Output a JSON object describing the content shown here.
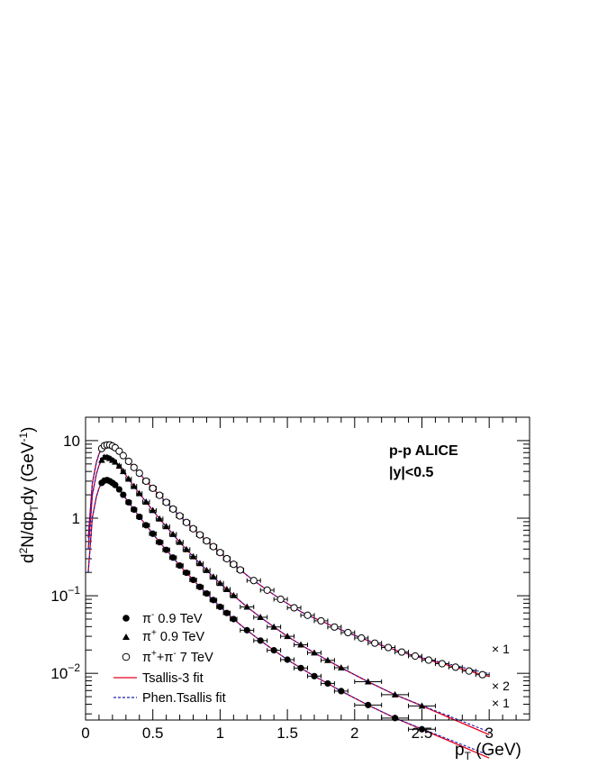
{
  "chart_data": {
    "type": "scatter",
    "xlabel": "p_T (GeV)",
    "ylabel": "d²N/dp_Tdy (GeV⁻¹)",
    "xlim": [
      0,
      3.3
    ],
    "ylim": [
      0.0025,
      20
    ],
    "yscale": "log",
    "x_ticks": [
      "0",
      "0.5",
      "1",
      "1.5",
      "2",
      "2.5",
      "3"
    ],
    "y_ticks": [
      "10^{-2}",
      "10^{-1}",
      "1",
      "10"
    ],
    "annotations": [
      "p-p  ALICE",
      "|y|<0.5"
    ],
    "multipliers": [
      "× 1",
      "× 2",
      "× 1"
    ],
    "legend": [
      {
        "label": "π⁻  0.9 TeV",
        "marker": "filled-circle"
      },
      {
        "label": "π⁺  0.9 TeV",
        "marker": "filled-triangle"
      },
      {
        "label": "π⁺+π⁻  7 TeV",
        "marker": "open-circle"
      },
      {
        "label": "Tsallis-3 fit",
        "line": "solid",
        "color": "#e8001c"
      },
      {
        "label": "Phen.Tsallis fit",
        "line": "dashed",
        "color": "#1c1cb4"
      }
    ],
    "colors": {
      "tsallis": "#e8001c",
      "phen": "#1c1cb4",
      "marker": "#000000"
    },
    "series": [
      {
        "marker": "open-circle",
        "x": [
          0.12,
          0.14,
          0.16,
          0.18,
          0.2,
          0.22,
          0.25,
          0.28,
          0.32,
          0.36,
          0.4,
          0.45,
          0.5,
          0.55,
          0.6,
          0.65,
          0.7,
          0.75,
          0.8,
          0.85,
          0.9,
          0.95,
          1.0,
          1.05,
          1.1,
          1.15,
          1.25,
          1.35,
          1.45,
          1.55,
          1.65,
          1.75,
          1.85,
          1.95,
          2.05,
          2.15,
          2.25,
          2.35,
          2.45,
          2.55,
          2.65,
          2.75,
          2.85,
          2.95
        ],
        "y": [
          7.9,
          8.6,
          8.8,
          8.8,
          8.5,
          8.1,
          7.3,
          6.4,
          5.4,
          4.5,
          3.8,
          3.0,
          2.43,
          1.97,
          1.6,
          1.31,
          1.07,
          0.88,
          0.73,
          0.61,
          0.51,
          0.43,
          0.36,
          0.3,
          0.254,
          0.215,
          0.157,
          0.118,
          0.09,
          0.07,
          0.056,
          0.0475,
          0.0395,
          0.0335,
          0.0285,
          0.0245,
          0.0215,
          0.0188,
          0.0167,
          0.0148,
          0.0133,
          0.012,
          0.0107,
          0.0096
        ],
        "xerr": [
          0.01,
          0.01,
          0.01,
          0.01,
          0.01,
          0.01,
          0.015,
          0.015,
          0.02,
          0.02,
          0.02,
          0.025,
          0.025,
          0.025,
          0.025,
          0.025,
          0.025,
          0.025,
          0.025,
          0.025,
          0.025,
          0.025,
          0.025,
          0.025,
          0.025,
          0.025,
          0.05,
          0.05,
          0.05,
          0.05,
          0.05,
          0.05,
          0.05,
          0.05,
          0.05,
          0.05,
          0.05,
          0.05,
          0.05,
          0.05,
          0.05,
          0.05,
          0.05,
          0.05
        ]
      },
      {
        "marker": "filled-triangle",
        "x": [
          0.12,
          0.14,
          0.16,
          0.18,
          0.2,
          0.22,
          0.25,
          0.28,
          0.32,
          0.36,
          0.4,
          0.45,
          0.5,
          0.55,
          0.6,
          0.65,
          0.7,
          0.75,
          0.8,
          0.85,
          0.9,
          0.95,
          1.0,
          1.05,
          1.1,
          1.2,
          1.3,
          1.4,
          1.5,
          1.6,
          1.7,
          1.8,
          1.9,
          2.1,
          2.3,
          2.5
        ],
        "y": [
          5.6,
          6.1,
          6.1,
          5.9,
          5.6,
          5.3,
          4.7,
          4.0,
          3.2,
          2.58,
          2.08,
          1.62,
          1.26,
          0.98,
          0.78,
          0.62,
          0.49,
          0.395,
          0.32,
          0.261,
          0.213,
          0.175,
          0.145,
          0.121,
          0.101,
          0.0718,
          0.0528,
          0.0396,
          0.03,
          0.0233,
          0.0184,
          0.0147,
          0.0118,
          0.0078,
          0.0053,
          0.0038
        ],
        "xerr": [
          0.01,
          0.01,
          0.01,
          0.01,
          0.01,
          0.01,
          0.015,
          0.015,
          0.02,
          0.02,
          0.02,
          0.025,
          0.025,
          0.025,
          0.025,
          0.025,
          0.025,
          0.025,
          0.025,
          0.025,
          0.025,
          0.025,
          0.025,
          0.025,
          0.025,
          0.05,
          0.05,
          0.05,
          0.05,
          0.05,
          0.05,
          0.05,
          0.05,
          0.1,
          0.1,
          0.1
        ]
      },
      {
        "marker": "filled-circle",
        "x": [
          0.12,
          0.14,
          0.16,
          0.18,
          0.2,
          0.22,
          0.25,
          0.28,
          0.32,
          0.36,
          0.4,
          0.45,
          0.5,
          0.55,
          0.6,
          0.65,
          0.7,
          0.75,
          0.8,
          0.85,
          0.9,
          0.95,
          1.0,
          1.05,
          1.1,
          1.2,
          1.3,
          1.4,
          1.5,
          1.6,
          1.7,
          1.8,
          1.9,
          2.1,
          2.3,
          2.5
        ],
        "y": [
          2.85,
          3.05,
          3.1,
          3.0,
          2.85,
          2.68,
          2.35,
          2.0,
          1.6,
          1.29,
          1.04,
          0.81,
          0.63,
          0.49,
          0.39,
          0.31,
          0.245,
          0.198,
          0.16,
          0.13,
          0.107,
          0.088,
          0.072,
          0.06,
          0.05,
          0.0359,
          0.0264,
          0.0198,
          0.015,
          0.0117,
          0.0092,
          0.0074,
          0.0059,
          0.0039,
          0.00265,
          0.0019
        ],
        "xerr": [
          0.01,
          0.01,
          0.01,
          0.01,
          0.01,
          0.01,
          0.015,
          0.015,
          0.02,
          0.02,
          0.02,
          0.025,
          0.025,
          0.025,
          0.025,
          0.025,
          0.025,
          0.025,
          0.025,
          0.025,
          0.025,
          0.025,
          0.025,
          0.025,
          0.025,
          0.05,
          0.05,
          0.05,
          0.05,
          0.05,
          0.05,
          0.05,
          0.05,
          0.1,
          0.1,
          0.1
        ]
      }
    ],
    "fit_scales": [
      1,
      2,
      1
    ]
  }
}
